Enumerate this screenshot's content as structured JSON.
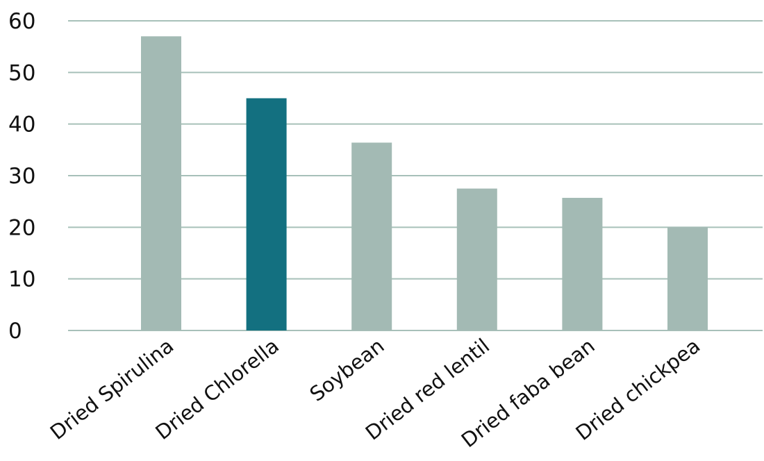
{
  "chart_data": {
    "type": "bar",
    "categories": [
      "Dried Spirulina",
      "Dried Chlorella",
      "Soybean",
      "Dried red lentil",
      "Dried faba bean",
      "Dried chickpea"
    ],
    "values": [
      57,
      45,
      36.4,
      27.5,
      25.7,
      20
    ],
    "highlight_index": 1,
    "colors": {
      "bar": "#a3bab4",
      "highlight": "#137080",
      "grid": "#a7c0b9",
      "text": "#111111"
    },
    "ylim": [
      0,
      60
    ],
    "yticks": [
      0,
      10,
      20,
      30,
      40,
      50,
      60
    ],
    "title": "",
    "xlabel": "",
    "ylabel": "",
    "grid": true,
    "legend": "none"
  }
}
